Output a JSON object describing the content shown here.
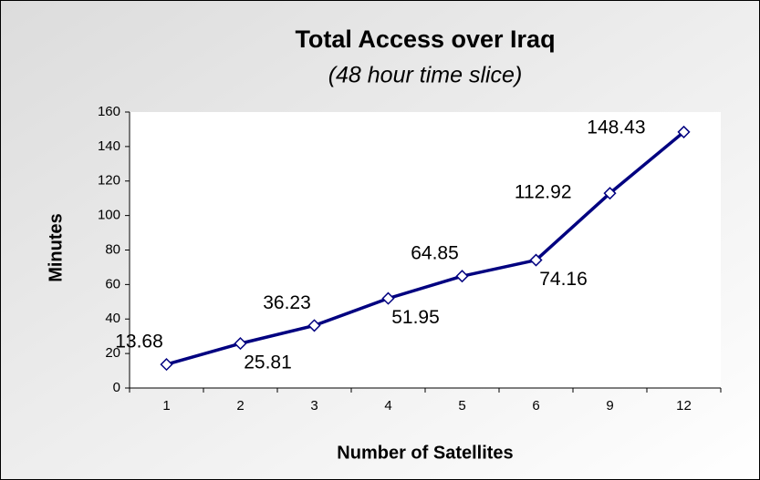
{
  "chart_data": {
    "type": "line",
    "title": "Total Access over Iraq",
    "subtitle": "(48 hour time slice)",
    "x_label": "Number of Satellites",
    "y_label": "Minutes",
    "categories": [
      "1",
      "2",
      "3",
      "4",
      "5",
      "6",
      "9",
      "12"
    ],
    "values": [
      13.68,
      25.81,
      36.23,
      51.95,
      64.85,
      74.16,
      112.92,
      148.43
    ],
    "color": "#000080",
    "ylim": [
      0,
      160
    ],
    "yticks": [
      0,
      20,
      40,
      60,
      80,
      100,
      120,
      140,
      160
    ],
    "grid": false
  }
}
